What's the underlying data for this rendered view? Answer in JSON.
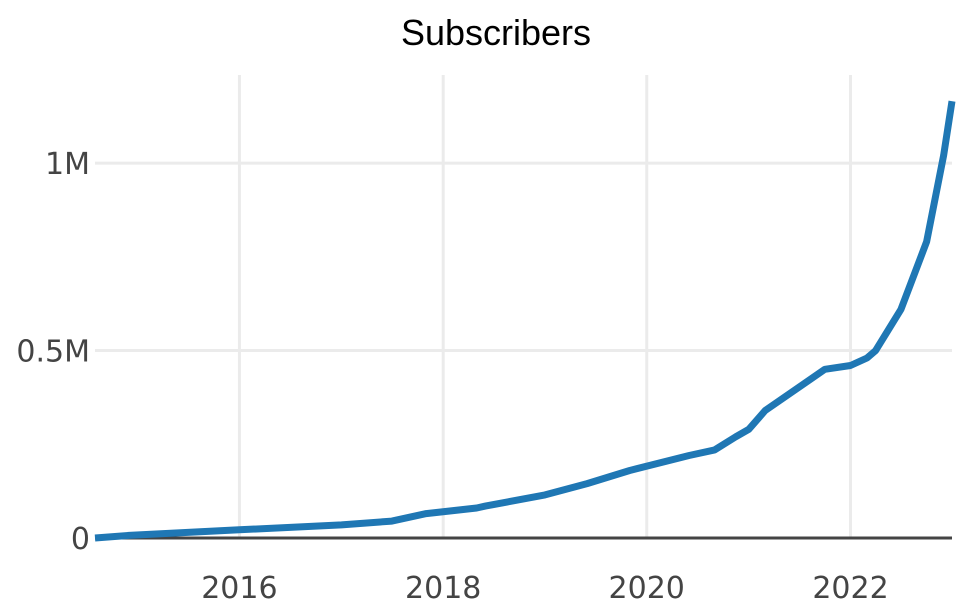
{
  "chart_data": {
    "type": "line",
    "title": "Subscribers",
    "xlabel": "",
    "ylabel": "",
    "x_axis_type": "date",
    "xlim": [
      "2014-08-01",
      "2022-12-31"
    ],
    "ylim": [
      0,
      1235000
    ],
    "x_ticks": [
      "2016-01-01",
      "2018-01-01",
      "2020-01-01",
      "2022-01-01"
    ],
    "x_tick_labels": [
      "2016",
      "2018",
      "2020",
      "2022"
    ],
    "y_ticks": [
      0,
      500000,
      1000000
    ],
    "y_tick_labels": [
      "0",
      "0.5M",
      "1M"
    ],
    "grid": true,
    "legend": "none",
    "line_color": "#1f77b4",
    "series": [
      {
        "x": [
          "2014-08-01",
          "2014-12-01",
          "2016-01-01",
          "2017-01-01",
          "2017-07-01",
          "2017-11-01",
          "2018-05-01",
          "2018-06-01",
          "2019-01-01",
          "2019-06-01",
          "2019-11-01",
          "2020-06-01",
          "2020-09-01",
          "2020-11-15",
          "2021-01-01",
          "2021-03-01",
          "2021-10-01",
          "2022-01-01",
          "2022-03-01",
          "2022-04-01",
          "2022-07-01",
          "2022-10-01",
          "2022-12-01",
          "2022-12-31"
        ],
        "values": [
          0,
          7000,
          22000,
          35000,
          45000,
          65000,
          80000,
          85000,
          115000,
          145000,
          180000,
          220000,
          235000,
          270000,
          290000,
          340000,
          450000,
          460000,
          480000,
          500000,
          610000,
          790000,
          1020000,
          1165000
        ]
      }
    ]
  }
}
